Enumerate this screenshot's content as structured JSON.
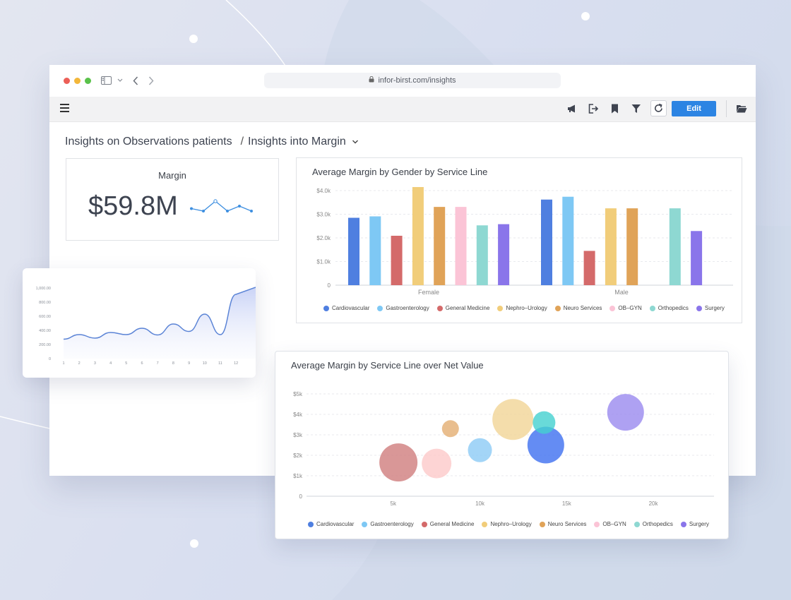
{
  "browser": {
    "url": "infor-birst.com/insights"
  },
  "toolbar": {
    "edit_label": "Edit"
  },
  "breadcrumb": {
    "root": "Insights on Observations patients",
    "separator": "/",
    "current": "Insights into Margin"
  },
  "kpi": {
    "title": "Margin",
    "value": "$59.8M",
    "sparkline": [
      3,
      2,
      6,
      2,
      4,
      2
    ]
  },
  "series_names": [
    "Cardiovascular",
    "Gastroenterology",
    "General Medicine",
    "Nephro–Urology",
    "Neuro Services",
    "OB–GYN",
    "Orthopedics",
    "Surgery"
  ],
  "series_colors": [
    "#4f7fe0",
    "#7ec8f4",
    "#d46a6a",
    "#f1cd7a",
    "#e0a358",
    "#fbc4d6",
    "#8ed8d2",
    "#8a75ea"
  ],
  "chart_data": [
    {
      "type": "bar",
      "title": "Average Margin by Gender by Service Line",
      "categories": [
        "Female",
        "Male"
      ],
      "series": [
        {
          "name": "Cardiovascular",
          "values": [
            2850,
            3620
          ]
        },
        {
          "name": "Gastroenterology",
          "values": [
            2910,
            3740
          ]
        },
        {
          "name": "General Medicine",
          "values": [
            2090,
            1450
          ]
        },
        {
          "name": "Nephro–Urology",
          "values": [
            4150,
            3250
          ]
        },
        {
          "name": "Neuro Services",
          "values": [
            3310,
            3250
          ]
        },
        {
          "name": "OB–GYN",
          "values": [
            3310,
            null
          ]
        },
        {
          "name": "Orthopedics",
          "values": [
            2530,
            3250
          ]
        },
        {
          "name": "Surgery",
          "values": [
            2580,
            2290
          ]
        }
      ],
      "yticks": [
        "0",
        "$1.0k",
        "$2.0k",
        "$3.0k",
        "$4.0k"
      ],
      "ylim": [
        0,
        4000
      ],
      "grid": true,
      "legend": "bottom"
    },
    {
      "type": "line",
      "x": [
        1,
        2,
        3,
        4,
        5,
        6,
        7,
        8,
        9,
        10,
        11,
        12
      ],
      "xticks": [
        "1",
        "2",
        "3",
        "4",
        "5",
        "6",
        "7",
        "8",
        "9",
        "10",
        "11",
        "12"
      ],
      "yticks": [
        "0",
        "200.00",
        "400.00",
        "600.00",
        "800.00",
        "1,000.00"
      ],
      "ylim": [
        0,
        1000
      ],
      "values": [
        275,
        340,
        290,
        370,
        340,
        430,
        335,
        490,
        385,
        630,
        340,
        910
      ],
      "fill": true
    },
    {
      "type": "scatter",
      "title": "Average Margin by Service Line over Net Value",
      "points": [
        {
          "name": "Cardiovascular",
          "x": 13800,
          "y": 2500,
          "size": 52
        },
        {
          "name": "Gastroenterology",
          "x": 10000,
          "y": 2250,
          "size": 34
        },
        {
          "name": "General Medicine",
          "x": 5300,
          "y": 1650,
          "size": 54
        },
        {
          "name": "Nephro–Urology",
          "x": 11900,
          "y": 3750,
          "size": 58
        },
        {
          "name": "Neuro Services",
          "x": 8300,
          "y": 3300,
          "size": 24
        },
        {
          "name": "OB–GYN",
          "x": 7500,
          "y": 1600,
          "size": 42
        },
        {
          "name": "Orthopedics",
          "x": 13700,
          "y": 3600,
          "size": 32
        },
        {
          "name": "Surgery",
          "x": 18400,
          "y": 4100,
          "size": 52
        }
      ],
      "xticks": [
        {
          "value": 5000,
          "label": "5k"
        },
        {
          "value": 10000,
          "label": "10k"
        },
        {
          "value": 15000,
          "label": "15k"
        },
        {
          "value": 20000,
          "label": "20k"
        }
      ],
      "yticks": [
        "0",
        "$1k",
        "$2k",
        "$3k",
        "$4k",
        "$5k"
      ],
      "xlim": [
        0,
        23500
      ],
      "ylim": [
        0,
        5000
      ],
      "grid": true,
      "legend": "bottom"
    }
  ]
}
